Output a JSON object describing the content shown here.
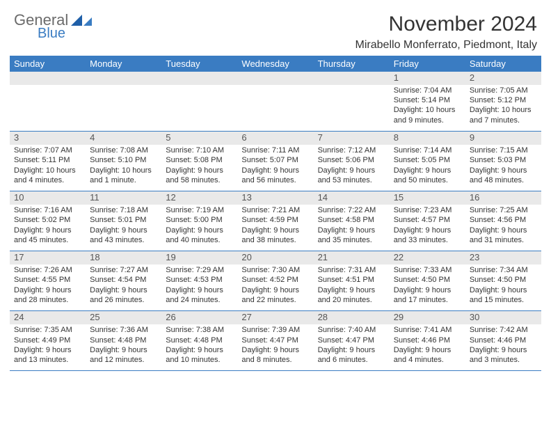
{
  "logo": {
    "word1": "General",
    "word2": "Blue",
    "color_gray": "#6b6b6b",
    "color_blue": "#3a7cc2"
  },
  "title": "November 2024",
  "location": "Mirabello Monferrato, Piedmont, Italy",
  "dow": [
    "Sunday",
    "Monday",
    "Tuesday",
    "Wednesday",
    "Thursday",
    "Friday",
    "Saturday"
  ],
  "colors": {
    "header_bg": "#3a7cc2",
    "header_fg": "#ffffff",
    "row_sep": "#3a7cc2",
    "daynum_bg": "#e9e9e9",
    "text": "#333333"
  },
  "weeks": [
    [
      null,
      null,
      null,
      null,
      null,
      {
        "n": "1",
        "sr": "Sunrise: 7:04 AM",
        "ss": "Sunset: 5:14 PM",
        "dl": "Daylight: 10 hours and 9 minutes."
      },
      {
        "n": "2",
        "sr": "Sunrise: 7:05 AM",
        "ss": "Sunset: 5:12 PM",
        "dl": "Daylight: 10 hours and 7 minutes."
      }
    ],
    [
      {
        "n": "3",
        "sr": "Sunrise: 7:07 AM",
        "ss": "Sunset: 5:11 PM",
        "dl": "Daylight: 10 hours and 4 minutes."
      },
      {
        "n": "4",
        "sr": "Sunrise: 7:08 AM",
        "ss": "Sunset: 5:10 PM",
        "dl": "Daylight: 10 hours and 1 minute."
      },
      {
        "n": "5",
        "sr": "Sunrise: 7:10 AM",
        "ss": "Sunset: 5:08 PM",
        "dl": "Daylight: 9 hours and 58 minutes."
      },
      {
        "n": "6",
        "sr": "Sunrise: 7:11 AM",
        "ss": "Sunset: 5:07 PM",
        "dl": "Daylight: 9 hours and 56 minutes."
      },
      {
        "n": "7",
        "sr": "Sunrise: 7:12 AM",
        "ss": "Sunset: 5:06 PM",
        "dl": "Daylight: 9 hours and 53 minutes."
      },
      {
        "n": "8",
        "sr": "Sunrise: 7:14 AM",
        "ss": "Sunset: 5:05 PM",
        "dl": "Daylight: 9 hours and 50 minutes."
      },
      {
        "n": "9",
        "sr": "Sunrise: 7:15 AM",
        "ss": "Sunset: 5:03 PM",
        "dl": "Daylight: 9 hours and 48 minutes."
      }
    ],
    [
      {
        "n": "10",
        "sr": "Sunrise: 7:16 AM",
        "ss": "Sunset: 5:02 PM",
        "dl": "Daylight: 9 hours and 45 minutes."
      },
      {
        "n": "11",
        "sr": "Sunrise: 7:18 AM",
        "ss": "Sunset: 5:01 PM",
        "dl": "Daylight: 9 hours and 43 minutes."
      },
      {
        "n": "12",
        "sr": "Sunrise: 7:19 AM",
        "ss": "Sunset: 5:00 PM",
        "dl": "Daylight: 9 hours and 40 minutes."
      },
      {
        "n": "13",
        "sr": "Sunrise: 7:21 AM",
        "ss": "Sunset: 4:59 PM",
        "dl": "Daylight: 9 hours and 38 minutes."
      },
      {
        "n": "14",
        "sr": "Sunrise: 7:22 AM",
        "ss": "Sunset: 4:58 PM",
        "dl": "Daylight: 9 hours and 35 minutes."
      },
      {
        "n": "15",
        "sr": "Sunrise: 7:23 AM",
        "ss": "Sunset: 4:57 PM",
        "dl": "Daylight: 9 hours and 33 minutes."
      },
      {
        "n": "16",
        "sr": "Sunrise: 7:25 AM",
        "ss": "Sunset: 4:56 PM",
        "dl": "Daylight: 9 hours and 31 minutes."
      }
    ],
    [
      {
        "n": "17",
        "sr": "Sunrise: 7:26 AM",
        "ss": "Sunset: 4:55 PM",
        "dl": "Daylight: 9 hours and 28 minutes."
      },
      {
        "n": "18",
        "sr": "Sunrise: 7:27 AM",
        "ss": "Sunset: 4:54 PM",
        "dl": "Daylight: 9 hours and 26 minutes."
      },
      {
        "n": "19",
        "sr": "Sunrise: 7:29 AM",
        "ss": "Sunset: 4:53 PM",
        "dl": "Daylight: 9 hours and 24 minutes."
      },
      {
        "n": "20",
        "sr": "Sunrise: 7:30 AM",
        "ss": "Sunset: 4:52 PM",
        "dl": "Daylight: 9 hours and 22 minutes."
      },
      {
        "n": "21",
        "sr": "Sunrise: 7:31 AM",
        "ss": "Sunset: 4:51 PM",
        "dl": "Daylight: 9 hours and 20 minutes."
      },
      {
        "n": "22",
        "sr": "Sunrise: 7:33 AM",
        "ss": "Sunset: 4:50 PM",
        "dl": "Daylight: 9 hours and 17 minutes."
      },
      {
        "n": "23",
        "sr": "Sunrise: 7:34 AM",
        "ss": "Sunset: 4:50 PM",
        "dl": "Daylight: 9 hours and 15 minutes."
      }
    ],
    [
      {
        "n": "24",
        "sr": "Sunrise: 7:35 AM",
        "ss": "Sunset: 4:49 PM",
        "dl": "Daylight: 9 hours and 13 minutes."
      },
      {
        "n": "25",
        "sr": "Sunrise: 7:36 AM",
        "ss": "Sunset: 4:48 PM",
        "dl": "Daylight: 9 hours and 12 minutes."
      },
      {
        "n": "26",
        "sr": "Sunrise: 7:38 AM",
        "ss": "Sunset: 4:48 PM",
        "dl": "Daylight: 9 hours and 10 minutes."
      },
      {
        "n": "27",
        "sr": "Sunrise: 7:39 AM",
        "ss": "Sunset: 4:47 PM",
        "dl": "Daylight: 9 hours and 8 minutes."
      },
      {
        "n": "28",
        "sr": "Sunrise: 7:40 AM",
        "ss": "Sunset: 4:47 PM",
        "dl": "Daylight: 9 hours and 6 minutes."
      },
      {
        "n": "29",
        "sr": "Sunrise: 7:41 AM",
        "ss": "Sunset: 4:46 PM",
        "dl": "Daylight: 9 hours and 4 minutes."
      },
      {
        "n": "30",
        "sr": "Sunrise: 7:42 AM",
        "ss": "Sunset: 4:46 PM",
        "dl": "Daylight: 9 hours and 3 minutes."
      }
    ]
  ]
}
